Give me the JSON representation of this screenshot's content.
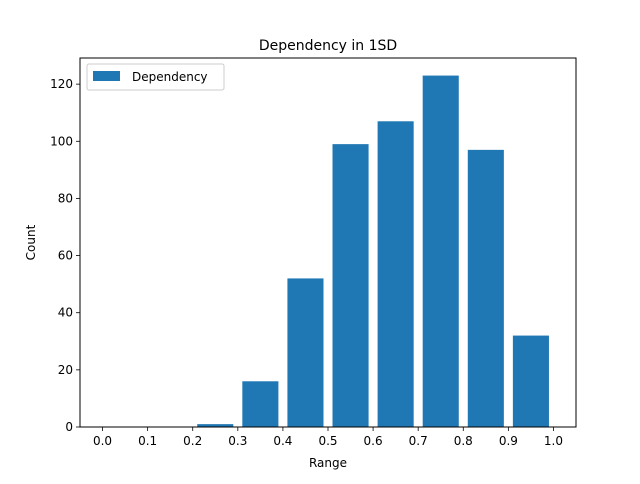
{
  "chart_data": {
    "type": "bar",
    "title": "Dependency in 1SD",
    "xlabel": "Range",
    "ylabel": "Count",
    "legend": {
      "entries": [
        "Dependency"
      ],
      "placement": "top-left"
    },
    "series": [
      {
        "name": "Dependency",
        "color": "#1f77b4",
        "bins": [
          {
            "start": 0.0,
            "end": 0.1,
            "value": 0
          },
          {
            "start": 0.1,
            "end": 0.2,
            "value": 0
          },
          {
            "start": 0.2,
            "end": 0.3,
            "value": 1
          },
          {
            "start": 0.3,
            "end": 0.4,
            "value": 16
          },
          {
            "start": 0.4,
            "end": 0.5,
            "value": 52
          },
          {
            "start": 0.5,
            "end": 0.6,
            "value": 99
          },
          {
            "start": 0.6,
            "end": 0.7,
            "value": 107
          },
          {
            "start": 0.7,
            "end": 0.8,
            "value": 123
          },
          {
            "start": 0.8,
            "end": 0.9,
            "value": 97
          },
          {
            "start": 0.9,
            "end": 1.0,
            "value": 32
          }
        ]
      }
    ],
    "xlim": [
      -0.05,
      1.05
    ],
    "ylim": [
      0,
      129.15
    ],
    "xticks": [
      "0.0",
      "0.1",
      "0.2",
      "0.3",
      "0.4",
      "0.5",
      "0.6",
      "0.7",
      "0.8",
      "0.9",
      "1.0"
    ],
    "yticks": [
      0,
      20,
      40,
      60,
      80,
      100,
      120
    ],
    "grid": false
  }
}
